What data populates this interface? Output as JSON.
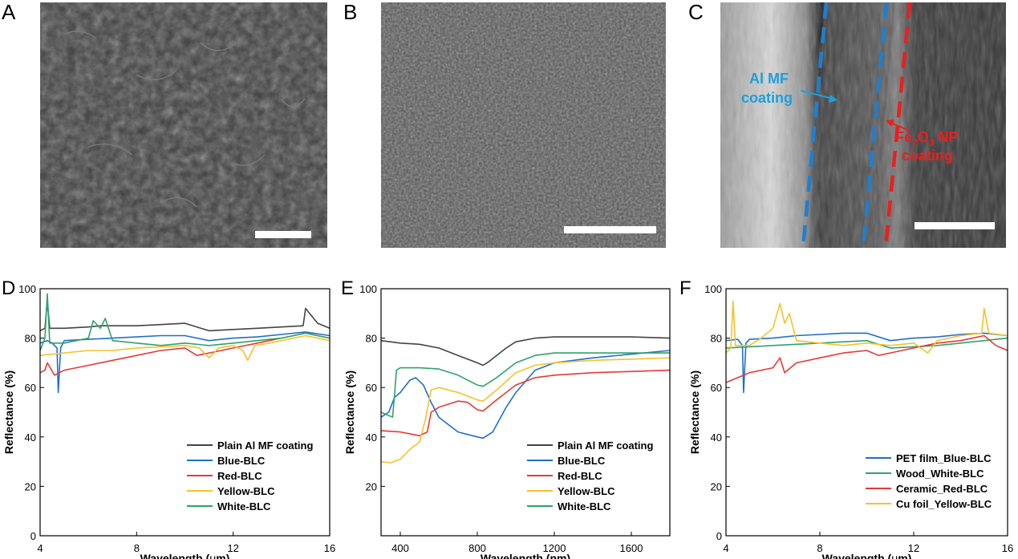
{
  "panels": {
    "a": {
      "letter": "A"
    },
    "b": {
      "letter": "B"
    },
    "c": {
      "letter": "C"
    },
    "d": {
      "letter": "D"
    },
    "e": {
      "letter": "E"
    },
    "f": {
      "letter": "F"
    }
  },
  "micrograph_c": {
    "al_label_line1": "Al MF",
    "al_label_line2": "coating",
    "fe_label_line1_pre": "Fe",
    "fe_label_sub1": "2",
    "fe_label_mid": "O",
    "fe_label_sub2": "3",
    "fe_label_post": " NP",
    "fe_label_line2": "coating",
    "colors": {
      "al": "#1e9fd8",
      "fe": "#e8201f"
    }
  },
  "chart_data": [
    {
      "type": "line",
      "panel": "D",
      "xlabel_pre": "Wavelength (",
      "xlabel_mu": "μ",
      "xlabel_post": "m)",
      "ylabel": "Reflectance (%)",
      "xlim": [
        4,
        16
      ],
      "ylim": [
        0,
        100
      ],
      "xticks": [
        "4",
        "8",
        "12",
        "16"
      ],
      "yticks": [
        "0",
        "20",
        "40",
        "60",
        "80",
        "100"
      ],
      "legend_position": "bottom-right",
      "series": [
        {
          "name": "Plain Al MF coating",
          "color": "#444444",
          "x": [
            4,
            4.2,
            4.3,
            4.4,
            5,
            6,
            6.5,
            7,
            8,
            9,
            10,
            11,
            12,
            13,
            14,
            14.9,
            15,
            15.5,
            16
          ],
          "y": [
            83,
            84,
            95,
            84,
            84,
            84.5,
            85,
            85,
            85,
            85.5,
            86,
            83,
            83.5,
            84,
            84.5,
            85,
            92,
            86,
            84
          ]
        },
        {
          "name": "Blue-BLC",
          "color": "#1f6fc9",
          "x": [
            4,
            4.3,
            4.5,
            4.7,
            4.75,
            4.85,
            5,
            6,
            7,
            8,
            9,
            10,
            11,
            12,
            13,
            14,
            15,
            16
          ],
          "y": [
            78,
            79,
            78,
            76,
            58,
            76,
            79,
            79.5,
            80,
            80.5,
            81,
            81,
            79,
            80,
            80.5,
            81.5,
            82.5,
            81
          ]
        },
        {
          "name": "Red-BLC",
          "color": "#e33a37",
          "x": [
            4,
            4.2,
            4.3,
            4.6,
            5,
            6,
            7,
            8,
            9,
            10,
            10.5,
            11,
            12,
            13,
            14,
            15,
            16
          ],
          "y": [
            66,
            67,
            70,
            65,
            67,
            69,
            71,
            73,
            75,
            76,
            73,
            74,
            76,
            78,
            80,
            82,
            80
          ]
        },
        {
          "name": "Yellow-BLC",
          "color": "#f5c22b",
          "x": [
            4,
            5,
            6,
            7,
            8,
            9,
            10,
            10.6,
            11,
            11.4,
            12,
            12.4,
            12.6,
            12.9,
            13.5,
            14,
            15,
            16
          ],
          "y": [
            73,
            74,
            75,
            75,
            76,
            76.5,
            77,
            76,
            72,
            76,
            77,
            75,
            71,
            77,
            78,
            79,
            81,
            79
          ]
        },
        {
          "name": "White-BLC",
          "color": "#2fa36b",
          "x": [
            4,
            4.2,
            4.3,
            4.4,
            5,
            5.5,
            6,
            6.2,
            6.5,
            6.7,
            7,
            8,
            9,
            10,
            11,
            12,
            13,
            14,
            15,
            16
          ],
          "y": [
            75,
            80,
            98,
            78,
            78,
            79,
            80,
            87,
            84,
            88,
            79,
            78,
            77,
            78,
            77,
            78,
            79,
            80,
            82,
            80
          ]
        }
      ],
      "legend": [
        "Plain Al MF coating",
        "Blue-BLC",
        "Red-BLC",
        "Yellow-BLC",
        "White-BLC"
      ]
    },
    {
      "type": "line",
      "panel": "E",
      "xlabel": "Wavelength (nm)",
      "ylabel": "Reflectance (%)",
      "xlim": [
        300,
        1800
      ],
      "ylim": [
        0,
        100
      ],
      "xticks": [
        "400",
        "800",
        "1200",
        "1600"
      ],
      "yticks": [
        "20",
        "40",
        "60",
        "80",
        "100"
      ],
      "legend_position": "bottom-right",
      "series": [
        {
          "name": "Plain Al MF coating",
          "color": "#444444",
          "x": [
            300,
            400,
            500,
            600,
            700,
            800,
            830,
            860,
            950,
            1000,
            1100,
            1200,
            1400,
            1600,
            1800
          ],
          "y": [
            79,
            78,
            77.5,
            76,
            73,
            70,
            69,
            70.5,
            76,
            78.5,
            80,
            80.5,
            80.5,
            80.5,
            80
          ]
        },
        {
          "name": "Blue-BLC",
          "color": "#1f6fc9",
          "x": [
            300,
            340,
            370,
            400,
            450,
            480,
            520,
            560,
            600,
            700,
            800,
            830,
            880,
            950,
            1000,
            1100,
            1200,
            1400,
            1600,
            1800
          ],
          "y": [
            48,
            50,
            56,
            58,
            63,
            64,
            61,
            54,
            48,
            42,
            40,
            39.5,
            42,
            52,
            58,
            67,
            70,
            72,
            73.5,
            75
          ]
        },
        {
          "name": "Red-BLC",
          "color": "#e33a37",
          "x": [
            300,
            400,
            500,
            540,
            560,
            600,
            700,
            750,
            800,
            830,
            900,
            1000,
            1100,
            1200,
            1400,
            1600,
            1800
          ],
          "y": [
            42.5,
            42,
            40.5,
            42,
            50,
            52,
            54.5,
            54,
            51,
            50.5,
            55,
            61,
            64,
            65,
            66,
            66.5,
            67
          ]
        },
        {
          "name": "Yellow-BLC",
          "color": "#f5c22b",
          "x": [
            300,
            350,
            400,
            450,
            500,
            530,
            560,
            600,
            700,
            800,
            830,
            900,
            1000,
            1100,
            1200,
            1400,
            1600,
            1800
          ],
          "y": [
            30,
            29.5,
            31,
            35,
            38,
            47,
            59,
            60,
            58,
            55,
            54.5,
            59,
            66,
            69,
            70,
            71,
            71.5,
            72
          ]
        },
        {
          "name": "White-BLC",
          "color": "#2fa36b",
          "x": [
            300,
            360,
            370,
            380,
            400,
            500,
            600,
            700,
            800,
            830,
            900,
            1000,
            1100,
            1200,
            1400,
            1600,
            1800
          ],
          "y": [
            50,
            48,
            57,
            67,
            68,
            68,
            67.5,
            65,
            61,
            60.5,
            64,
            70,
            73,
            74,
            74,
            74,
            74
          ]
        }
      ],
      "legend": [
        "Plain Al MF coating",
        "Blue-BLC",
        "Red-BLC",
        "Yellow-BLC",
        "White-BLC"
      ]
    },
    {
      "type": "line",
      "panel": "F",
      "xlabel_pre": "Wavelength (",
      "xlabel_mu": "μ",
      "xlabel_post": "m)",
      "ylabel": "Reflectance (%)",
      "xlim": [
        4,
        16
      ],
      "ylim": [
        0,
        100
      ],
      "xticks": [
        "4",
        "8",
        "12",
        "16"
      ],
      "yticks": [
        "0",
        "20",
        "40",
        "60",
        "80",
        "100"
      ],
      "legend_position": "bottom-right",
      "series": [
        {
          "name": "PET film_Blue-BLC",
          "color": "#1f6fc9",
          "x": [
            4,
            4.5,
            4.7,
            4.75,
            4.85,
            5,
            6,
            7,
            8,
            9,
            10,
            11,
            12,
            13,
            14,
            15,
            16
          ],
          "y": [
            79,
            79.5,
            77,
            58,
            78,
            79.5,
            80,
            81,
            81.5,
            82,
            82,
            79,
            80,
            80.5,
            81.5,
            82,
            81
          ]
        },
        {
          "name": "Wood_White-BLC",
          "color": "#2fa36b",
          "x": [
            4,
            5,
            6,
            7,
            8,
            9,
            10,
            11,
            12,
            13,
            14,
            15,
            16
          ],
          "y": [
            76,
            76.5,
            77,
            77.5,
            78,
            78.5,
            79,
            76,
            76.5,
            77,
            78,
            79,
            80
          ]
        },
        {
          "name": "Ceramic_Red-BLC",
          "color": "#e33a37",
          "x": [
            4,
            4.5,
            5,
            6,
            6.3,
            6.5,
            7,
            8,
            9,
            10,
            10.5,
            11,
            12,
            13,
            14,
            15,
            15.5,
            16
          ],
          "y": [
            62,
            64,
            66,
            68,
            72,
            66,
            70,
            72,
            74,
            75,
            73,
            74,
            76,
            78,
            79,
            81,
            77,
            75
          ]
        },
        {
          "name": "Cu foil_Yellow-BLC",
          "color": "#f5c22b",
          "x": [
            4,
            4.2,
            4.3,
            4.4,
            5,
            5.5,
            6,
            6.3,
            6.5,
            6.7,
            7,
            8,
            9,
            10,
            11,
            12,
            12.6,
            13,
            14,
            14.9,
            15,
            15.2,
            16
          ],
          "y": [
            74,
            76,
            95,
            77,
            77,
            80,
            84,
            94,
            86,
            90,
            79,
            78,
            77,
            78,
            77,
            78,
            74,
            79,
            81,
            82,
            92,
            82,
            81
          ]
        }
      ],
      "legend": [
        "PET film_Blue-BLC",
        "Wood_White-BLC",
        "Ceramic_Red-BLC",
        "Cu foil_Yellow-BLC"
      ]
    }
  ]
}
